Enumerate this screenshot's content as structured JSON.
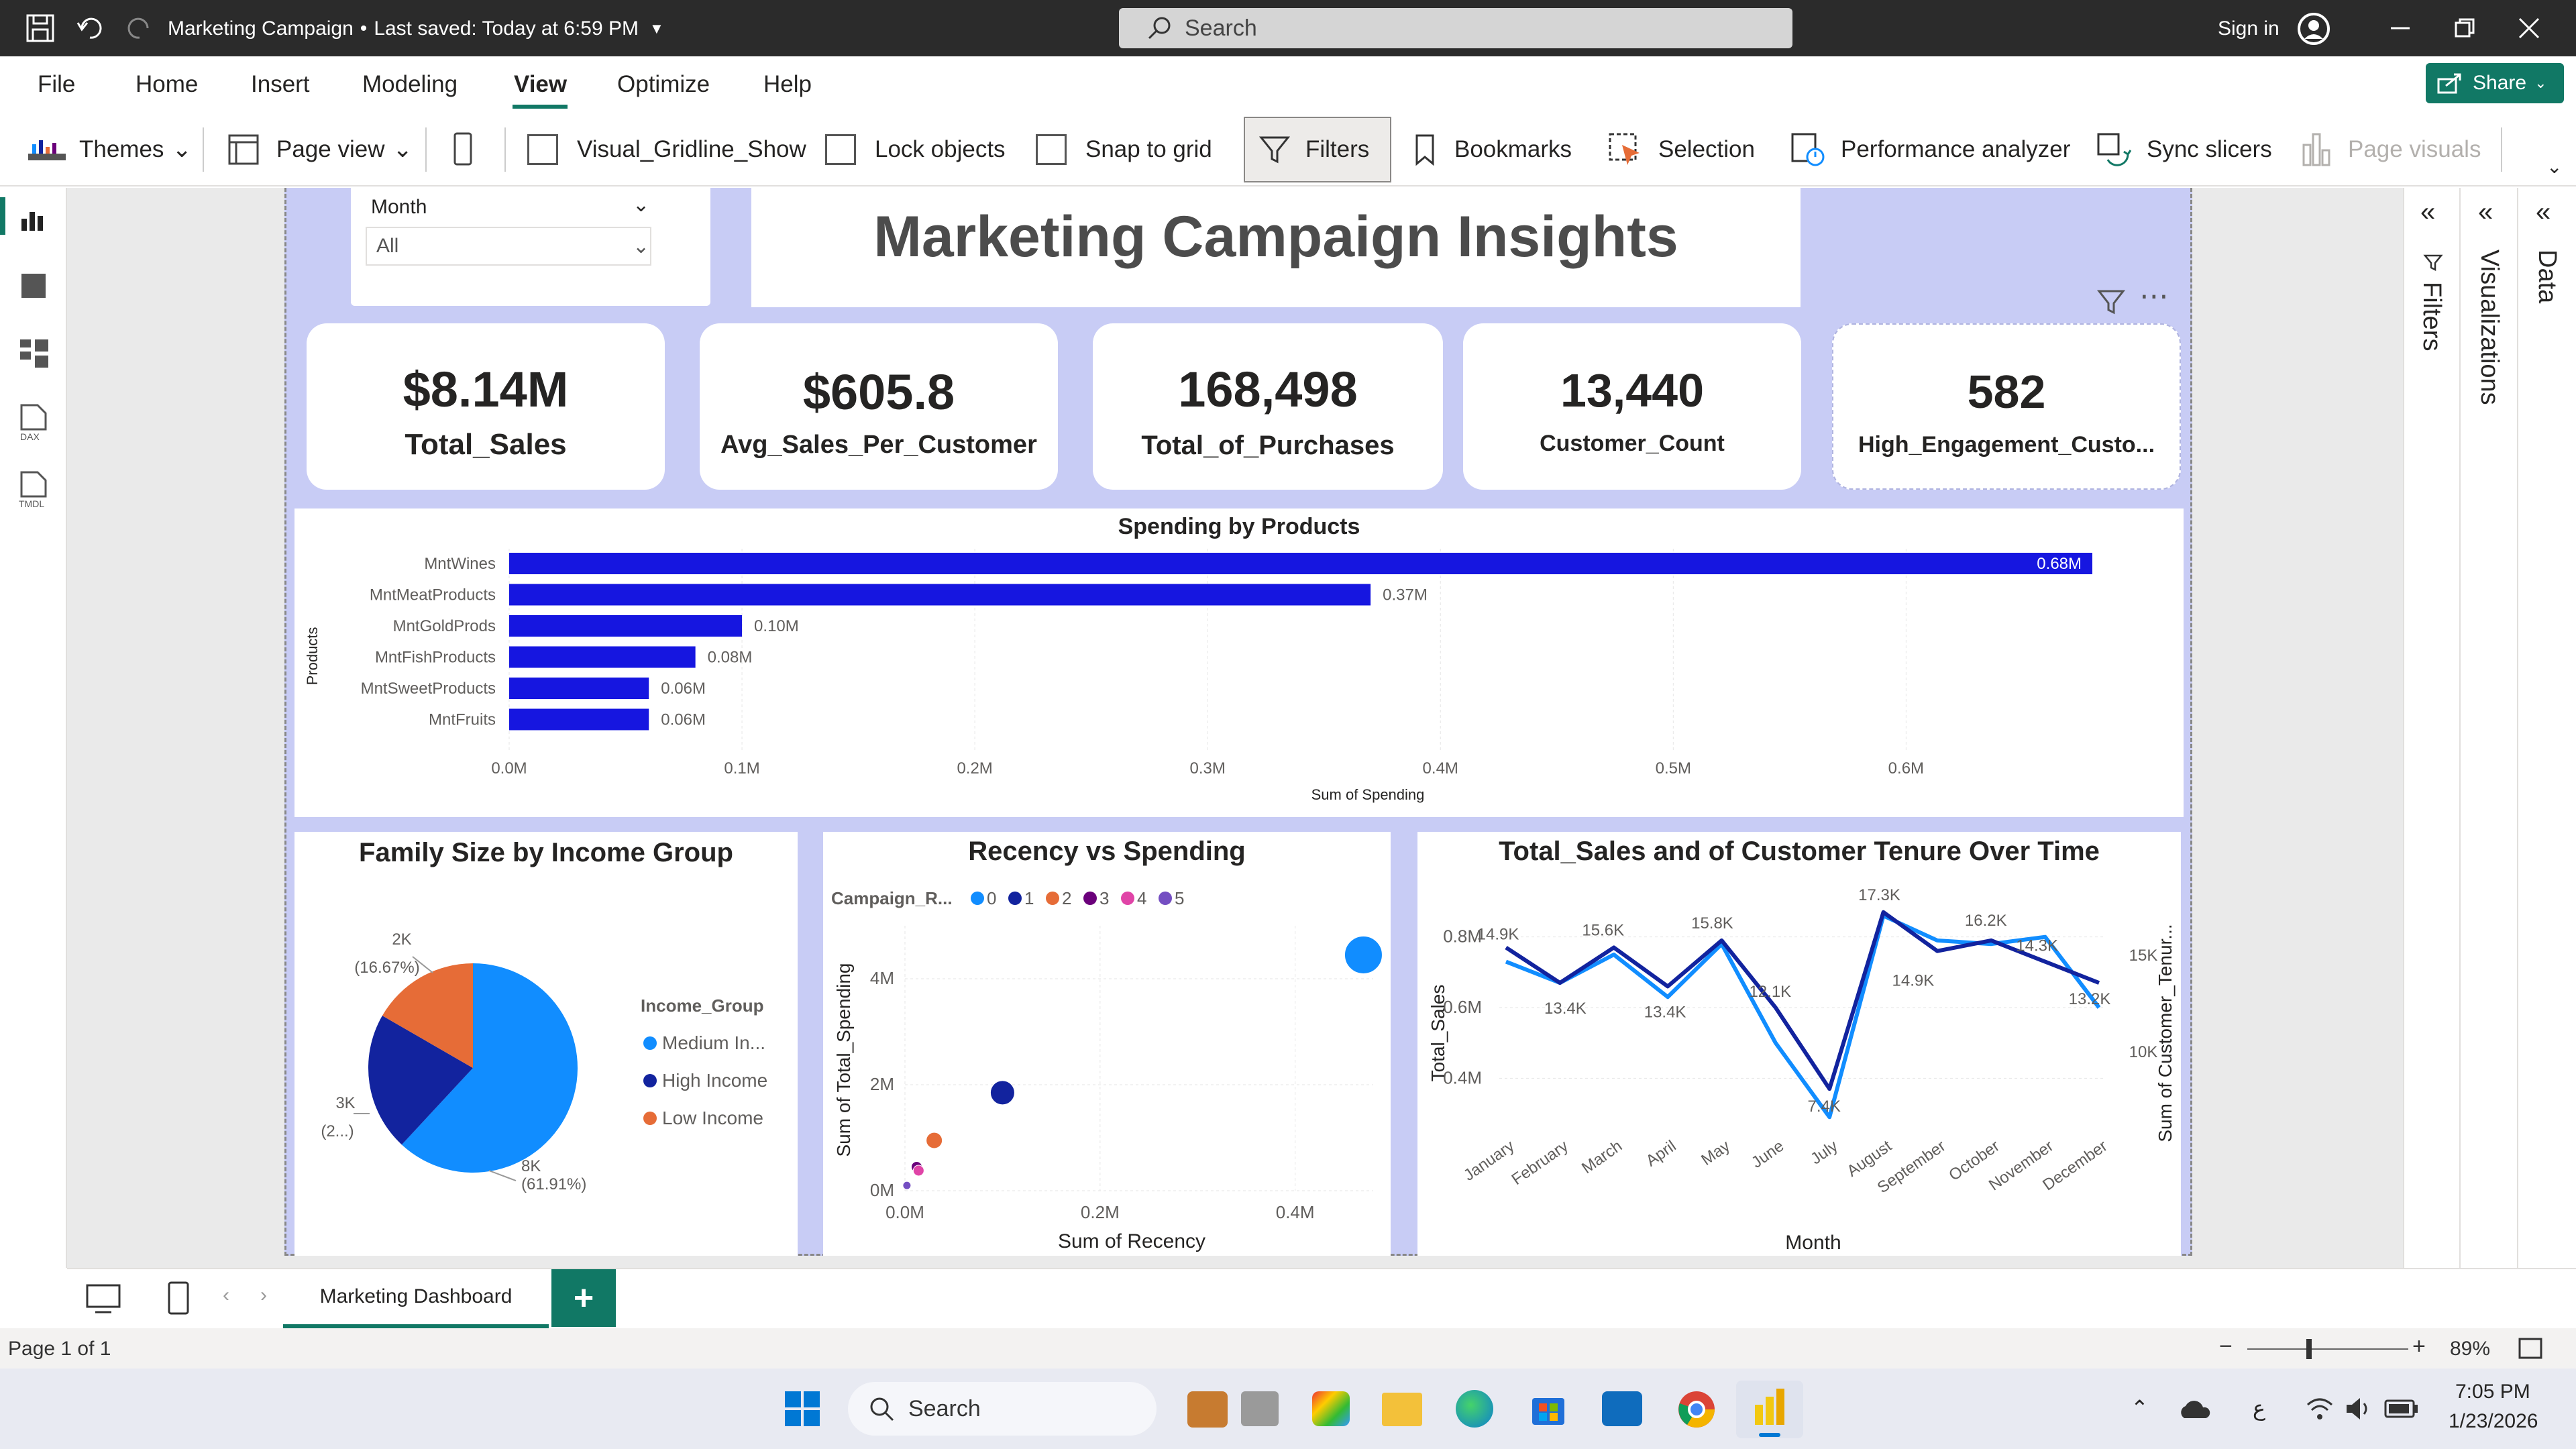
{
  "titlebar": {
    "doc_title": "Marketing Campaign",
    "save_status": "Last saved: Today at 6:59 PM",
    "search_placeholder": "Search",
    "sign_in": "Sign in"
  },
  "menu": {
    "items": [
      "File",
      "Home",
      "Insert",
      "Modeling",
      "View",
      "Optimize",
      "Help"
    ],
    "active": "View",
    "share": "Share"
  },
  "toolbar": {
    "themes": "Themes",
    "page_view": "Page view",
    "gridline": "Visual_Gridline_Show",
    "lock": "Lock objects",
    "snap": "Snap to grid",
    "filters": "Filters",
    "bookmarks": "Bookmarks",
    "selection": "Selection",
    "performance": "Performance analyzer",
    "sync": "Sync slicers",
    "page_visuals": "Page visuals"
  },
  "slicer": {
    "label": "Month",
    "value": "All"
  },
  "report_title": "Marketing Campaign Insights",
  "kpis": [
    {
      "value": "$8.14M",
      "label": "Total_Sales"
    },
    {
      "value": "$605.8",
      "label": "Avg_Sales_Per_Customer"
    },
    {
      "value": "168,498",
      "label": "Total_of_Purchases"
    },
    {
      "value": "13,440",
      "label": "Customer_Count"
    },
    {
      "value": "582",
      "label": "High_Engagement_Custo..."
    }
  ],
  "chart_data": [
    {
      "type": "bar",
      "title": "Spending by Products",
      "xlabel": "Sum of Spending",
      "ylabel": "Products",
      "categories": [
        "MntWines",
        "MntMeatProducts",
        "MntGoldProds",
        "MntFishProducts",
        "MntSweetProducts",
        "MntFruits"
      ],
      "values": [
        0.68,
        0.37,
        0.1,
        0.08,
        0.06,
        0.06
      ],
      "data_labels": [
        "0.68M",
        "0.37M",
        "0.10M",
        "0.08M",
        "0.06M",
        "0.06M"
      ],
      "x_ticks": [
        "0.0M",
        "0.1M",
        "0.2M",
        "0.3M",
        "0.4M",
        "0.5M",
        "0.6M"
      ],
      "xlim": [
        0,
        0.68
      ],
      "color": "#1616e0"
    },
    {
      "type": "pie",
      "title": "Family Size by Income Group",
      "legend_title": "Income_Group",
      "legend": [
        "Medium In...",
        "High Income",
        "Low Income"
      ],
      "values": [
        61.91,
        21.42,
        16.67
      ],
      "labels": [
        {
          "line1": "8K",
          "line2": "(61.91%)"
        },
        {
          "line1": "3K",
          "line2": "(2...)"
        },
        {
          "line1": "2K",
          "line2": "(16.67%)"
        }
      ],
      "colors": [
        "#118dff",
        "#12239e",
        "#e66c37"
      ]
    },
    {
      "type": "scatter",
      "title": "Recency vs Spending",
      "legend_title": "Campaign_R...",
      "legend": [
        "0",
        "1",
        "2",
        "3",
        "4",
        "5"
      ],
      "legend_colors": [
        "#118dff",
        "#12239e",
        "#e66c37",
        "#6b007b",
        "#e044a7",
        "#744ec2"
      ],
      "xlabel": "Sum of Recency",
      "ylabel": "Sum of Total_Spending",
      "x_ticks": [
        "0.0M",
        "0.2M",
        "0.4M"
      ],
      "y_ticks": [
        "0M",
        "2M",
        "4M"
      ],
      "xlim": [
        0,
        0.48
      ],
      "ylim": [
        0,
        5
      ],
      "points": [
        {
          "x": 0.47,
          "y": 4.45,
          "series": "0"
        },
        {
          "x": 0.1,
          "y": 1.85,
          "series": "1"
        },
        {
          "x": 0.03,
          "y": 0.95,
          "series": "2"
        },
        {
          "x": 0.012,
          "y": 0.45,
          "series": "3"
        },
        {
          "x": 0.014,
          "y": 0.38,
          "series": "4"
        },
        {
          "x": 0.002,
          "y": 0.1,
          "series": "5"
        }
      ]
    },
    {
      "type": "line",
      "title": "Total_Sales and of Customer Tenure Over Time",
      "xlabel": "Month",
      "ylabel": "Total_Sales",
      "ylabel_right": "Sum of Customer_Tenur...",
      "categories": [
        "January",
        "February",
        "March",
        "April",
        "May",
        "June",
        "July",
        "August",
        "September",
        "October",
        "November",
        "December"
      ],
      "y_ticks": [
        "0.4M",
        "0.6M",
        "0.8M"
      ],
      "y_right_ticks": [
        "10K",
        "15K"
      ],
      "ylim": [
        0.3,
        0.9
      ],
      "series": [
        {
          "name": "Total_Sales",
          "color": "#118dff",
          "values": [
            0.73,
            0.67,
            0.75,
            0.63,
            0.78,
            0.5,
            0.29,
            0.86,
            0.79,
            0.78,
            0.8,
            0.6
          ]
        },
        {
          "name": "Sum of Customer_Tenure",
          "color": "#12239e",
          "values": [
            0.77,
            0.67,
            0.77,
            0.66,
            0.79,
            0.6,
            0.37,
            0.87,
            0.76,
            0.79,
            0.73,
            0.67
          ]
        }
      ],
      "point_labels": [
        "14.9K",
        "13.4K",
        "15.6K",
        "13.4K",
        "15.8K",
        "12.1K",
        "7.4K",
        "17.3K",
        "14.9K",
        "16.2K",
        "14.3K",
        "13.2K"
      ]
    }
  ],
  "right_panes": [
    "Filters",
    "Visualizations",
    "Data"
  ],
  "page_tab": "Marketing Dashboard",
  "status": {
    "page": "Page 1 of 1",
    "zoom": "89%"
  },
  "taskbar": {
    "search": "Search",
    "time": "7:05 PM",
    "date": "1/23/2026",
    "lang": "ع"
  }
}
